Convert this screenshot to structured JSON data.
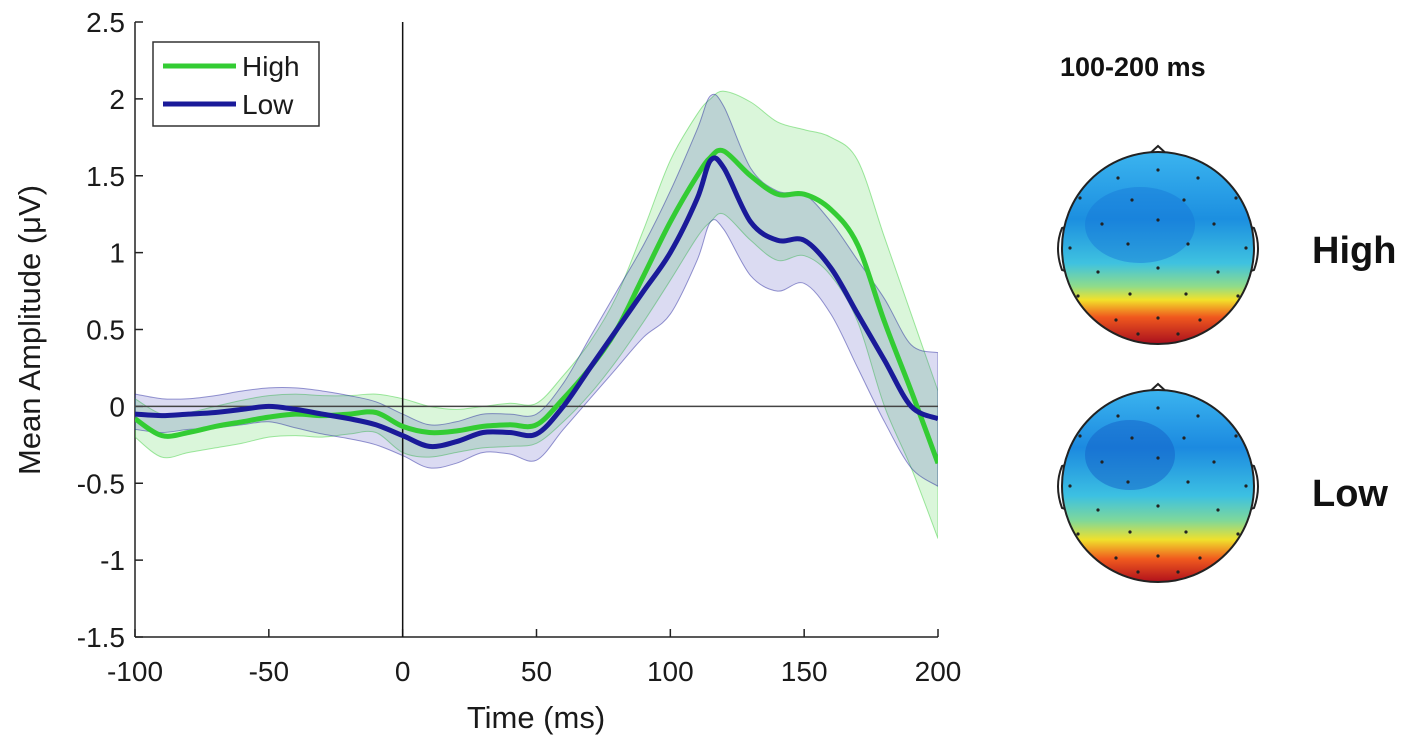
{
  "chart_data": {
    "type": "line",
    "title": "",
    "xlabel": "Time (ms)",
    "ylabel": "Mean Amplitude (μV)",
    "xlim": [
      -100,
      200
    ],
    "ylim": [
      -1.5,
      2.5
    ],
    "xticks": [
      -100,
      -50,
      0,
      50,
      100,
      150,
      200
    ],
    "yticks": [
      -1.5,
      -1,
      -0.5,
      0,
      0.5,
      1,
      1.5,
      2,
      2.5
    ],
    "ytick_labels": [
      "-1.5",
      "-1",
      "-0.5",
      "0",
      "0.5",
      "1",
      "1.5",
      "2",
      "2.5"
    ],
    "xtick_labels": [
      "-100",
      "-50",
      "0",
      "50",
      "100",
      "150",
      "200"
    ],
    "legend": {
      "location": "top-left"
    },
    "x": [
      -100,
      -90,
      -80,
      -70,
      -60,
      -50,
      -40,
      -30,
      -20,
      -10,
      0,
      10,
      20,
      30,
      40,
      50,
      60,
      70,
      80,
      90,
      100,
      110,
      115,
      120,
      130,
      140,
      150,
      160,
      170,
      180,
      190,
      200
    ],
    "series": [
      {
        "name": "High",
        "color": "#33cc33",
        "values": [
          -0.08,
          -0.19,
          -0.17,
          -0.13,
          -0.1,
          -0.07,
          -0.05,
          -0.06,
          -0.05,
          -0.04,
          -0.13,
          -0.17,
          -0.16,
          -0.13,
          -0.12,
          -0.12,
          0.05,
          0.25,
          0.5,
          0.85,
          1.2,
          1.5,
          1.62,
          1.66,
          1.5,
          1.38,
          1.38,
          1.28,
          1.05,
          0.55,
          0.1,
          -0.37
        ],
        "upper": [
          0.05,
          -0.05,
          -0.04,
          0.0,
          0.04,
          0.07,
          0.08,
          0.07,
          0.07,
          0.08,
          0.05,
          0.0,
          -0.02,
          0.0,
          0.02,
          0.02,
          0.2,
          0.42,
          0.72,
          1.15,
          1.6,
          1.9,
          2.0,
          2.05,
          1.98,
          1.85,
          1.8,
          1.75,
          1.6,
          1.1,
          0.6,
          0.1
        ],
        "lower": [
          -0.2,
          -0.33,
          -0.3,
          -0.27,
          -0.24,
          -0.2,
          -0.19,
          -0.2,
          -0.18,
          -0.17,
          -0.3,
          -0.33,
          -0.3,
          -0.27,
          -0.26,
          -0.24,
          -0.1,
          0.08,
          0.3,
          0.55,
          0.82,
          1.1,
          1.2,
          1.25,
          1.08,
          0.95,
          0.98,
          0.85,
          0.55,
          0.0,
          -0.4,
          -0.86
        ]
      },
      {
        "name": "Low",
        "color": "#1a1a99",
        "values": [
          -0.05,
          -0.06,
          -0.05,
          -0.04,
          -0.02,
          0.0,
          -0.02,
          -0.05,
          -0.08,
          -0.12,
          -0.19,
          -0.26,
          -0.23,
          -0.17,
          -0.17,
          -0.18,
          0.0,
          0.25,
          0.5,
          0.75,
          1.0,
          1.35,
          1.6,
          1.55,
          1.2,
          1.08,
          1.08,
          0.9,
          0.6,
          0.3,
          0.0,
          -0.08
        ],
        "upper": [
          0.08,
          0.05,
          0.05,
          0.07,
          0.1,
          0.12,
          0.12,
          0.1,
          0.07,
          0.03,
          -0.05,
          -0.12,
          -0.1,
          -0.05,
          -0.05,
          -0.05,
          0.15,
          0.45,
          0.75,
          1.05,
          1.4,
          1.8,
          2.02,
          1.95,
          1.55,
          1.4,
          1.38,
          1.2,
          0.95,
          0.7,
          0.4,
          0.35
        ],
        "lower": [
          -0.15,
          -0.17,
          -0.15,
          -0.14,
          -0.12,
          -0.1,
          -0.14,
          -0.18,
          -0.21,
          -0.25,
          -0.32,
          -0.4,
          -0.37,
          -0.3,
          -0.31,
          -0.35,
          -0.15,
          0.05,
          0.25,
          0.45,
          0.6,
          0.95,
          1.2,
          1.15,
          0.85,
          0.75,
          0.8,
          0.6,
          0.25,
          -0.1,
          -0.4,
          -0.52
        ]
      }
    ]
  },
  "topomaps": {
    "title": "100-200 ms",
    "maps": [
      {
        "label": "High"
      },
      {
        "label": "Low"
      }
    ]
  }
}
